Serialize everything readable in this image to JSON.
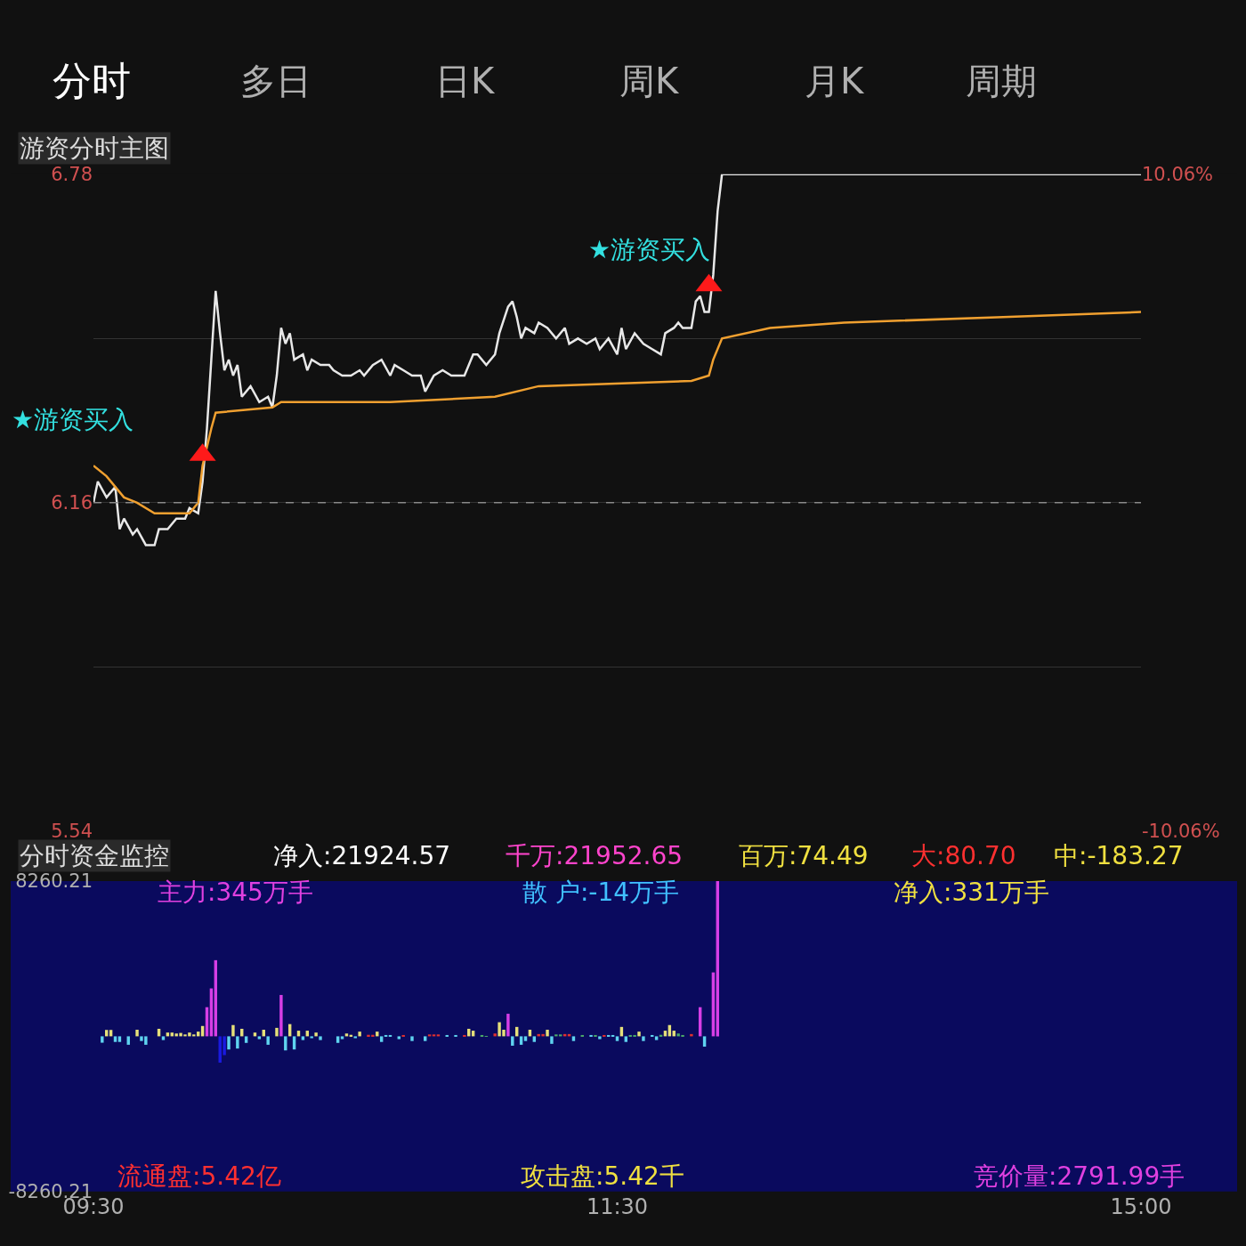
{
  "chart_data": [
    {
      "type": "line",
      "title": "游资分时主图",
      "categories": [
        null,
        null,
        null,
        null,
        null,
        null,
        null,
        null,
        null,
        null,
        null,
        null,
        null,
        null,
        null,
        null,
        null,
        null,
        null,
        null,
        null,
        null,
        null,
        null,
        null,
        null,
        null,
        null,
        null,
        null,
        null,
        null,
        null,
        null,
        null,
        null,
        null,
        null,
        null,
        null,
        null,
        null,
        null,
        null,
        null,
        null,
        null,
        null,
        null,
        null,
        null,
        null,
        null,
        null,
        null,
        null,
        null,
        null,
        null,
        null,
        null,
        null,
        null,
        null,
        null,
        null,
        null,
        null,
        null,
        null,
        null,
        null,
        null,
        null,
        null,
        null,
        null,
        null,
        null,
        null,
        null,
        null,
        null,
        null,
        null,
        null,
        null,
        null,
        null,
        null,
        null,
        null,
        null,
        null,
        null,
        null,
        null,
        null,
        null,
        null,
        null,
        null,
        null,
        null,
        null,
        null,
        null,
        null,
        null,
        null,
        null,
        null,
        null,
        null,
        null,
        null,
        null,
        null,
        null,
        null,
        null,
        null,
        null,
        null,
        null,
        null,
        null,
        null,
        null,
        null,
        null,
        null,
        null,
        null,
        null,
        null,
        null,
        null,
        null,
        null,
        null,
        null,
        null,
        null,
        null,
        null,
        null,
        null,
        null,
        null,
        null,
        null,
        null,
        null,
        null,
        null,
        null,
        null,
        null,
        null,
        null,
        null,
        null,
        null,
        null,
        null,
        null,
        null,
        null,
        null,
        null,
        null,
        null,
        null,
        null,
        null,
        null,
        null,
        null,
        null,
        null,
        null,
        null,
        null,
        null,
        null,
        null,
        null,
        null,
        null,
        null,
        null,
        null,
        null,
        null,
        null,
        null,
        null,
        null,
        null,
        null,
        null,
        null,
        null,
        null,
        null,
        null,
        null,
        null,
        null,
        null,
        null,
        null,
        null,
        null,
        null,
        null,
        null,
        null,
        null,
        null,
        null,
        null,
        null,
        null,
        null,
        null,
        null,
        null,
        null,
        null,
        null,
        null,
        null,
        null,
        null,
        null,
        null,
        null,
        null,
        null
      ],
      "ylim": [
        5.54,
        6.78
      ],
      "yticks": [
        6.78,
        {
          "value": 6.47,
          "label": null
        },
        6.16,
        {
          "value": 5.85,
          "label": null
        },
        5.54
      ],
      "y2lim": [
        -10.06,
        10.06
      ],
      "y2ticks": [
        {
          "value": 10.06,
          "label": "10.06%"
        },
        {
          "value": -10.06,
          "label": "-10.06%"
        }
      ],
      "grid": "y",
      "ref_lines": [
        {
          "axis": "y",
          "value": 6.16,
          "color": "#8a8a8a",
          "line_style": "dashed"
        }
      ],
      "annotations": [
        "分时",
        "多日",
        "日K",
        "周K",
        "月K",
        "周期",
        "★游资买入",
        "★游资买入"
      ],
      "series": [
        {
          "color": "#e8e8e8",
          "values": [
            6.16,
            6.2,
            null,
            6.17,
            null,
            6.19,
            6.11,
            6.13,
            null,
            6.1,
            6.11,
            null,
            6.08,
            null,
            6.08,
            6.11,
            null,
            6.11,
            null,
            6.13,
            null,
            6.13,
            6.15,
            null,
            6.14,
            6.2,
            6.3,
            6.43,
            6.56,
            6.48,
            6.41,
            6.43,
            6.4,
            6.42,
            6.36,
            null,
            6.38,
            null,
            6.35,
            null,
            6.36,
            6.34,
            6.4,
            6.49,
            6.46,
            6.48,
            6.43,
            null,
            6.44,
            6.41,
            6.43,
            null,
            6.42,
            null,
            6.42,
            6.41,
            null,
            6.4,
            null,
            6.4,
            null,
            6.41,
            6.4,
            null,
            6.42,
            null,
            6.43,
            null,
            6.4,
            6.42,
            null,
            6.41,
            null,
            6.4,
            null,
            6.4,
            6.37,
            null,
            6.4,
            null,
            6.41,
            null,
            6.4,
            6.4,
            null,
            6.4,
            null,
            6.44,
            6.44,
            null,
            6.42,
            null,
            6.44,
            6.48,
            null,
            6.53,
            6.54,
            6.51,
            6.47,
            6.49,
            null,
            6.48,
            6.5,
            null,
            6.49,
            null,
            6.47,
            null,
            6.49,
            6.46,
            null,
            6.47,
            null,
            6.46,
            null,
            6.47,
            6.45,
            null,
            6.47,
            null,
            6.44,
            6.49,
            6.45,
            null,
            6.48,
            null,
            6.46,
            null,
            6.45,
            null,
            6.44,
            6.48,
            null,
            6.49,
            6.5,
            6.49,
            null,
            6.49,
            6.54,
            6.55,
            6.52,
            6.52,
            6.59,
            6.71,
            6.78,
            6.78,
            6.78,
            6.78,
            6.78,
            6.78,
            6.78,
            6.78,
            6.78,
            6.78,
            6.78,
            6.78,
            6.78,
            6.78,
            6.78,
            6.78,
            6.78,
            6.78,
            6.78,
            6.78,
            6.78,
            6.78,
            6.78,
            6.78,
            6.78,
            6.78,
            6.78,
            6.78,
            6.78,
            6.78,
            6.78,
            6.78,
            6.78,
            6.78,
            6.78,
            6.78,
            6.78,
            6.78,
            6.78,
            6.78,
            6.78,
            6.78,
            6.78,
            6.78,
            6.78,
            6.78,
            6.78,
            6.78,
            6.78,
            6.78,
            6.78,
            6.78,
            6.78,
            6.78,
            6.78,
            6.78,
            6.78,
            6.78,
            6.78,
            6.78,
            6.78,
            6.78,
            6.78,
            6.78,
            6.78,
            6.78,
            6.78,
            6.78,
            6.78,
            6.78,
            6.78,
            6.78,
            6.78,
            6.78,
            6.78,
            6.78,
            6.78,
            6.78,
            6.78,
            6.78,
            6.78,
            6.78,
            6.78,
            6.78,
            6.78,
            6.78,
            6.78,
            6.78,
            6.78,
            6.78,
            6.78,
            6.78,
            6.78,
            6.78,
            6.78,
            6.78,
            6.78
          ]
        },
        {
          "color": "#f0a030",
          "values": [
            6.23,
            null,
            null,
            6.21,
            null,
            null,
            null,
            6.17,
            null,
            null,
            6.16,
            null,
            null,
            null,
            6.14,
            null,
            null,
            6.14,
            null,
            null,
            null,
            null,
            6.14,
            null,
            6.16,
            6.23,
            null,
            6.3,
            6.33,
            null,
            null,
            null,
            null,
            null,
            null,
            null,
            null,
            null,
            null,
            null,
            null,
            6.34,
            null,
            6.35,
            null,
            null,
            null,
            null,
            null,
            null,
            null,
            null,
            null,
            null,
            null,
            null,
            null,
            null,
            null,
            null,
            null,
            null,
            null,
            null,
            null,
            null,
            null,
            null,
            6.35,
            null,
            null,
            null,
            null,
            null,
            null,
            null,
            null,
            null,
            null,
            null,
            null,
            null,
            null,
            null,
            null,
            null,
            null,
            null,
            null,
            null,
            null,
            null,
            6.36,
            null,
            null,
            null,
            null,
            null,
            null,
            null,
            null,
            null,
            6.38,
            null,
            null,
            null,
            null,
            null,
            null,
            null,
            null,
            null,
            null,
            null,
            null,
            null,
            null,
            null,
            null,
            null,
            null,
            null,
            null,
            null,
            null,
            null,
            null,
            null,
            null,
            null,
            null,
            null,
            null,
            null,
            null,
            null,
            null,
            6.39,
            null,
            null,
            null,
            6.4,
            6.43,
            null,
            6.47,
            null,
            null,
            null,
            null,
            null,
            null,
            null,
            null,
            null,
            null,
            6.49,
            null,
            null,
            null,
            null,
            null,
            null,
            null,
            null,
            null,
            null,
            null,
            null,
            null,
            null,
            null,
            null,
            6.5,
            null,
            null,
            null,
            null,
            null,
            null,
            null,
            null,
            null,
            null,
            null,
            null,
            null,
            null,
            null,
            null,
            null,
            null,
            null,
            null,
            null,
            null,
            null,
            null,
            null,
            null,
            null,
            null,
            null,
            null,
            null,
            null,
            null,
            null,
            6.51,
            null,
            null,
            null,
            null,
            null,
            null,
            null,
            null,
            null,
            null,
            null,
            null,
            null,
            null,
            null,
            null,
            null,
            null,
            null,
            null,
            null,
            null,
            null,
            null,
            null,
            null,
            null,
            null,
            null,
            null,
            null,
            null,
            6.52
          ]
        },
        {
          "type": "scatter",
          "marker": "triangle",
          "color": "#ff1a1a",
          "values": [
            null,
            null,
            null,
            null,
            null,
            null,
            null,
            null,
            null,
            null,
            null,
            null,
            null,
            null,
            null,
            null,
            null,
            null,
            null,
            null,
            null,
            null,
            null,
            null,
            null,
            6.25,
            null,
            null,
            null,
            null,
            null,
            null,
            null,
            null,
            null,
            null,
            null,
            null,
            null,
            null,
            null,
            null,
            null,
            null,
            null,
            null,
            null,
            null,
            null,
            null,
            null,
            null,
            null,
            null,
            null,
            null,
            null,
            null,
            null,
            null,
            null,
            null,
            null,
            null,
            null,
            null,
            null,
            null,
            null,
            null,
            null,
            null,
            null,
            null,
            null,
            null,
            null,
            null,
            null,
            null,
            null,
            null,
            null,
            null,
            null,
            null,
            null,
            null,
            null,
            null,
            null,
            null,
            null,
            null,
            null,
            null,
            null,
            null,
            null,
            null,
            null,
            null,
            null,
            null,
            null,
            null,
            null,
            null,
            null,
            null,
            null,
            null,
            null,
            null,
            null,
            null,
            null,
            null,
            null,
            null,
            null,
            null,
            null,
            null,
            null,
            null,
            null,
            null,
            null,
            null,
            null,
            null,
            null,
            null,
            null,
            null,
            null,
            null,
            null,
            null,
            null,
            6.57,
            null,
            null,
            null,
            null,
            null,
            null,
            null,
            null,
            null,
            null,
            null,
            null,
            null,
            null,
            null,
            null,
            null,
            null,
            null,
            null,
            null,
            null,
            null,
            null,
            null,
            null,
            null,
            null,
            null,
            null,
            null,
            null,
            null,
            null,
            null,
            null,
            null,
            null,
            null,
            null,
            null,
            null,
            null,
            null,
            null,
            null,
            null,
            null,
            null,
            null,
            null,
            null,
            null,
            null,
            null,
            null,
            null,
            null,
            null,
            null,
            null,
            null,
            null,
            null,
            null,
            null,
            null,
            null,
            null,
            null,
            null,
            null,
            null,
            null,
            null,
            null,
            null,
            null,
            null,
            null,
            null,
            null,
            null,
            null,
            null,
            null,
            null,
            null,
            null,
            null,
            null,
            null,
            null,
            null,
            null,
            null,
            null,
            null,
            null
          ]
        }
      ]
    },
    {
      "type": "bar",
      "title": "分时资金监控",
      "categories": [
        "09:30",
        null,
        null,
        null,
        null,
        null,
        null,
        null,
        null,
        null,
        null,
        null,
        null,
        null,
        null,
        null,
        null,
        null,
        null,
        null,
        null,
        null,
        null,
        null,
        null,
        null,
        null,
        null,
        null,
        null,
        null,
        null,
        null,
        null,
        null,
        null,
        null,
        null,
        null,
        null,
        null,
        null,
        null,
        null,
        null,
        null,
        null,
        null,
        null,
        null,
        null,
        null,
        null,
        null,
        null,
        null,
        null,
        null,
        null,
        null,
        null,
        null,
        null,
        null,
        null,
        null,
        null,
        null,
        null,
        null,
        null,
        null,
        null,
        null,
        null,
        null,
        null,
        null,
        null,
        null,
        null,
        null,
        null,
        null,
        null,
        null,
        null,
        null,
        null,
        null,
        null,
        null,
        null,
        null,
        null,
        null,
        null,
        null,
        null,
        null,
        null,
        null,
        null,
        null,
        null,
        null,
        null,
        null,
        null,
        null,
        null,
        null,
        null,
        null,
        null,
        null,
        null,
        null,
        null,
        null,
        "11:30",
        null,
        null,
        null,
        null,
        null,
        null,
        null,
        null,
        null,
        null,
        null,
        null,
        null,
        null,
        null,
        null,
        null,
        null,
        null,
        null,
        null,
        null,
        null,
        null,
        null,
        null,
        null,
        null,
        null,
        null,
        null,
        null,
        null,
        null,
        null,
        null,
        null,
        null,
        null,
        null,
        null,
        null,
        null,
        null,
        null,
        null,
        null,
        null,
        null,
        null,
        null,
        null,
        null,
        null,
        null,
        null,
        null,
        null,
        null,
        null,
        null,
        null,
        null,
        null,
        null,
        null,
        null,
        null,
        null,
        null,
        null,
        null,
        null,
        null,
        null,
        null,
        null,
        null,
        null,
        null,
        null,
        null,
        null,
        null,
        null,
        null,
        null,
        null,
        null,
        null,
        null,
        null,
        null,
        null,
        null,
        null,
        null,
        null,
        null,
        null,
        null,
        null,
        null,
        null,
        null,
        null,
        null,
        null,
        null,
        null,
        null,
        null,
        null,
        null,
        null,
        null,
        null,
        null,
        null,
        "15:00"
      ],
      "ylim": [
        -8260.21,
        8260.21
      ],
      "yticks": [
        8260.21,
        -8260.21
      ],
      "annotations": [
        "净入:21924.57",
        "千万:21952.65",
        "百万:74.49",
        "大:80.70",
        "中:-183.27",
        "主力:345万手",
        "散 户:-14万手",
        "净入:331万手",
        "流通盘:5.42亿",
        "攻击盘:5.42千",
        "竞价量:2791.99手"
      ],
      "values": [
        null,
        null,
        -340,
        340,
        340,
        -300,
        -300,
        null,
        -450,
        null,
        350,
        -250,
        -450,
        null,
        null,
        400,
        -200,
        200,
        200,
        150,
        180,
        100,
        200,
        100,
        250,
        550,
        1550,
        2550,
        4050,
        -1400,
        -1000,
        -700,
        600,
        -650,
        400,
        -350,
        null,
        200,
        -150,
        350,
        -450,
        null,
        450,
        2200,
        -750,
        650,
        -700,
        300,
        -200,
        300,
        -100,
        200,
        -200,
        null,
        null,
        null,
        -350,
        -150,
        150,
        80,
        -100,
        250,
        null,
        80,
        80,
        250,
        -300,
        40,
        40,
        null,
        -150,
        60,
        null,
        -250,
        null,
        null,
        -250,
        100,
        100,
        100,
        null,
        30,
        null,
        30,
        null,
        60,
        400,
        300,
        null,
        40,
        20,
        null,
        150,
        750,
        350,
        1200,
        -500,
        500,
        -450,
        -250,
        350,
        -300,
        120,
        120,
        350,
        -400,
        100,
        100,
        120,
        120,
        -250,
        null,
        50,
        null,
        40,
        40,
        -150,
        50,
        30,
        30,
        -250,
        500,
        -300,
        60,
        60,
        250,
        -250,
        null,
        40,
        -200,
        80,
        300,
        600,
        300,
        150,
        50,
        null,
        120,
        null,
        1550,
        -550,
        null,
        3400,
        8260,
        null,
        null,
        null,
        null,
        null,
        null,
        null,
        null,
        null,
        null,
        null,
        null,
        null,
        null,
        null,
        null,
        null,
        null,
        null,
        null,
        null,
        null,
        null,
        null,
        null,
        null,
        null,
        null,
        null,
        null,
        null,
        null,
        null,
        null,
        null,
        null,
        null,
        null,
        null,
        null,
        null,
        null,
        null,
        null,
        null,
        null,
        null,
        null,
        null,
        null,
        null,
        null,
        null,
        null,
        null,
        null,
        null,
        null,
        null,
        null,
        null,
        null,
        null,
        null,
        null,
        null,
        null,
        null,
        null,
        null,
        null,
        null,
        null,
        null,
        null,
        null,
        null,
        null,
        null,
        null,
        null,
        null,
        null,
        null,
        null,
        null,
        null,
        null,
        null,
        null,
        null,
        null,
        null,
        null,
        null,
        null,
        null
      ],
      "colors": [
        null,
        null,
        "#5fd3f0",
        "#e6e07a",
        "#e6e07a",
        "#5fd3f0",
        "#5fd3f0",
        null,
        "#5fd3f0",
        null,
        "#e6e07a",
        "#5fd3f0",
        "#5fd3f0",
        null,
        null,
        "#e6e07a",
        "#5fd3f0",
        "#e6e07a",
        "#e6e07a",
        "#e6e07a",
        "#e6e07a",
        "#e6e07a",
        "#e6e07a",
        "#e6e07a",
        "#e6e07a",
        "#e6e07a",
        "#d63ee6",
        "#d63ee6",
        "#d63ee6",
        "#1a1adf",
        "#1a1adf",
        "#5fd3f0",
        "#e6e07a",
        "#5fd3f0",
        "#e6e07a",
        "#5fd3f0",
        null,
        "#e6e07a",
        "#5fd3f0",
        "#e6e07a",
        "#5fd3f0",
        null,
        "#e6e07a",
        "#d63ee6",
        "#5fd3f0",
        "#e6e07a",
        "#5fd3f0",
        "#e6e07a",
        "#5fd3f0",
        "#e6e07a",
        "#5fd3f0",
        "#e6e07a",
        "#5fd3f0",
        null,
        null,
        null,
        "#5fd3f0",
        "#5fd3f0",
        "#e6e07a",
        "#e6e07a",
        "#5fd3f0",
        "#e6e07a",
        null,
        "#e03030",
        "#e03030",
        "#e6e07a",
        "#5fd3f0",
        "#5fd3f0",
        "#5fd3f0",
        null,
        "#5fd3f0",
        "#e03030",
        null,
        "#5fd3f0",
        null,
        null,
        "#5fd3f0",
        "#e03030",
        "#e03030",
        "#e03030",
        null,
        "#5fd3f0",
        null,
        "#5fd3f0",
        null,
        "#e03030",
        "#e6e07a",
        "#e6e07a",
        null,
        "#4caa6a",
        "#4caa6a",
        null,
        "#e03030",
        "#e6e07a",
        "#e6e07a",
        "#d63ee6",
        "#5fd3f0",
        "#e6e07a",
        "#5fd3f0",
        "#5fd3f0",
        "#e6e07a",
        "#5fd3f0",
        "#e03030",
        "#e03030",
        "#e6e07a",
        "#5fd3f0",
        "#4caa6a",
        "#4caa6a",
        "#e03030",
        "#e03030",
        "#5fd3f0",
        null,
        "#4caa6a",
        null,
        "#5fd3f0",
        "#4caa6a",
        "#5fd3f0",
        "#e03030",
        "#5fd3f0",
        "#5fd3f0",
        "#5fd3f0",
        "#e6e07a",
        "#5fd3f0",
        "#4caa6a",
        "#4caa6a",
        "#e6e07a",
        "#5fd3f0",
        null,
        "#5fd3f0",
        "#5fd3f0",
        "#4caa6a",
        "#e6e07a",
        "#e6e07a",
        "#e6e07a",
        "#4caa6a",
        "#4caa6a",
        null,
        "#e03030",
        null,
        "#d63ee6",
        "#5fd3f0",
        null,
        "#d63ee6",
        "#d63ee6",
        null,
        null,
        null,
        null,
        null,
        null,
        null,
        null,
        null,
        null,
        null,
        null,
        null,
        null,
        null,
        null,
        null,
        null,
        null,
        null,
        null,
        null,
        null,
        null,
        null,
        null,
        null,
        null,
        null,
        null,
        null,
        null,
        null,
        null,
        null,
        null,
        null,
        null,
        null,
        null,
        null,
        null,
        null,
        null,
        null,
        null,
        null,
        null,
        null,
        null,
        null,
        null,
        null,
        null,
        null,
        null,
        null,
        null,
        null,
        null,
        null,
        null,
        null,
        null,
        null,
        null,
        null,
        null,
        null,
        null,
        null,
        null,
        null,
        null,
        null,
        null,
        null,
        null,
        null,
        null,
        null,
        null,
        null,
        null,
        null,
        null,
        null,
        null,
        null,
        null,
        null,
        null,
        null,
        null,
        null,
        null,
        null
      ]
    }
  ]
}
